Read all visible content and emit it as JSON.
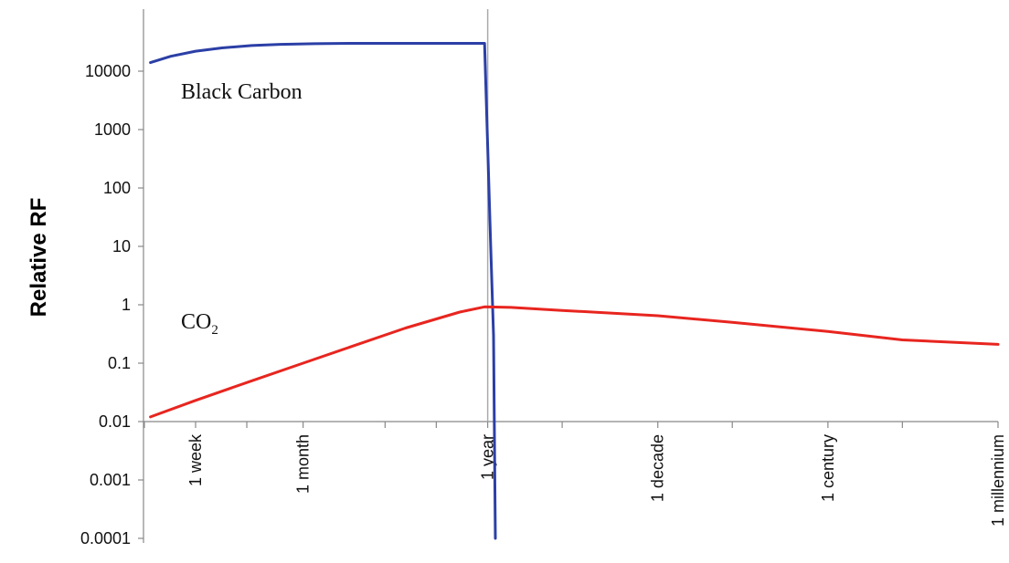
{
  "chart_data": {
    "type": "line",
    "title": "",
    "ylabel": "Relative RF",
    "xlabel": "",
    "yscale": "log",
    "ylim": [
      0.0001,
      100000
    ],
    "y_ticks": [
      "10000",
      "1000",
      "100",
      "10",
      "1",
      "0.1",
      "0.01",
      "0.001",
      "0.0001"
    ],
    "y_tick_values": [
      10000,
      1000,
      100,
      10,
      1,
      0.1,
      0.01,
      0.001,
      0.0001
    ],
    "xscale": "log",
    "x_unit": "days",
    "x_ticks": [
      {
        "label": "1 week",
        "value": 7
      },
      {
        "label": "1 month",
        "value": 30
      },
      {
        "label": "1 year",
        "value": 365
      },
      {
        "label": "1 decade",
        "value": 3650
      },
      {
        "label": "1 century",
        "value": 36500
      },
      {
        "label": "1 millennium",
        "value": 365000
      }
    ],
    "reference_line": {
      "value": 365
    },
    "series": [
      {
        "name": "Black Carbon",
        "color": "#2b3fa6",
        "points": [
          [
            3.8,
            14000
          ],
          [
            5,
            18000
          ],
          [
            7,
            22000
          ],
          [
            10,
            25000
          ],
          [
            15,
            27500
          ],
          [
            22,
            28800
          ],
          [
            35,
            29500
          ],
          [
            60,
            30000
          ],
          [
            120,
            30000
          ],
          [
            240,
            30000
          ],
          [
            350,
            30000
          ],
          [
            380,
            10
          ],
          [
            395,
            0.3
          ],
          [
            405,
            0.0001
          ]
        ]
      },
      {
        "name": "CO",
        "name_subscript": "2",
        "color": "#e8251f",
        "points": [
          [
            3.8,
            0.012
          ],
          [
            7,
            0.023
          ],
          [
            15,
            0.05
          ],
          [
            30,
            0.1
          ],
          [
            60,
            0.2
          ],
          [
            120,
            0.4
          ],
          [
            250,
            0.75
          ],
          [
            350,
            0.92
          ],
          [
            500,
            0.9
          ],
          [
            1000,
            0.8
          ],
          [
            3650,
            0.65
          ],
          [
            10000,
            0.5
          ],
          [
            36500,
            0.35
          ],
          [
            100000,
            0.25
          ],
          [
            365000,
            0.21
          ]
        ]
      }
    ],
    "annotations": [
      {
        "text": "Black Carbon",
        "series": "Black Carbon"
      },
      {
        "text": "CO",
        "subscript": "2",
        "series": "CO"
      }
    ],
    "grid": false,
    "legend": "none"
  }
}
